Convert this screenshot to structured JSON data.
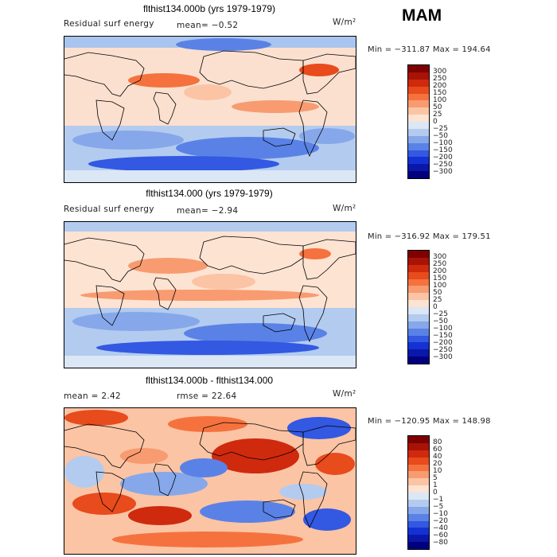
{
  "season": "MAM",
  "panels": [
    {
      "id": "panel-1",
      "title": "flthist134.000b (yrs 1979-1979)",
      "left_label": "Residual surf energy",
      "stat1": "mean=  −0.52",
      "stat2": "",
      "units": "W/m²",
      "minmax": "Min = −311.87 Max = 194.64",
      "colorbar": {
        "labels": [
          "300",
          "250",
          "200",
          "150",
          "100",
          "50",
          "25",
          "0",
          "−25",
          "−50",
          "−100",
          "−150",
          "−200",
          "−250",
          "−300"
        ],
        "colors": [
          "#7f0000",
          "#a81306",
          "#cf2a0e",
          "#e84b1c",
          "#f5723e",
          "#f89b70",
          "#fbc4a5",
          "#fde3d2",
          "#dbe7f5",
          "#b3cbef",
          "#86a8ea",
          "#5a82e6",
          "#3358e2",
          "#1432d4",
          "#0a17aa",
          "#00007f"
        ]
      }
    },
    {
      "id": "panel-2",
      "title": "flthist134.000 (yrs 1979-1979)",
      "left_label": "Residual surf energy",
      "stat1": "mean=  −2.94",
      "stat2": "",
      "units": "W/m²",
      "minmax": "Min = −316.92 Max = 179.51",
      "colorbar": {
        "labels": [
          "300",
          "250",
          "200",
          "150",
          "100",
          "50",
          "25",
          "0",
          "−25",
          "−50",
          "−100",
          "−150",
          "−200",
          "−250",
          "−300"
        ],
        "colors": [
          "#7f0000",
          "#a81306",
          "#cf2a0e",
          "#e84b1c",
          "#f5723e",
          "#f89b70",
          "#fbc4a5",
          "#fde3d2",
          "#dbe7f5",
          "#b3cbef",
          "#86a8ea",
          "#5a82e6",
          "#3358e2",
          "#1432d4",
          "#0a17aa",
          "#00007f"
        ]
      }
    },
    {
      "id": "panel-3",
      "title": "flthist134.000b - flthist134.000",
      "left_label": "mean =    2.42",
      "stat1": "",
      "stat2": "rmse =   22.64",
      "units": "W/m²",
      "minmax": "Min = −120.95 Max = 148.98",
      "colorbar": {
        "labels": [
          "80",
          "60",
          "40",
          "20",
          "10",
          "5",
          "1",
          "0",
          "−1",
          "−5",
          "−10",
          "−20",
          "−40",
          "−60",
          "−80"
        ],
        "colors": [
          "#7f0000",
          "#a81306",
          "#cf2a0e",
          "#e84b1c",
          "#f5723e",
          "#f89b70",
          "#fbc4a5",
          "#fde3d2",
          "#dbe7f5",
          "#b3cbef",
          "#86a8ea",
          "#5a82e6",
          "#3358e2",
          "#1432d4",
          "#0a17aa",
          "#00007f"
        ]
      }
    }
  ]
}
